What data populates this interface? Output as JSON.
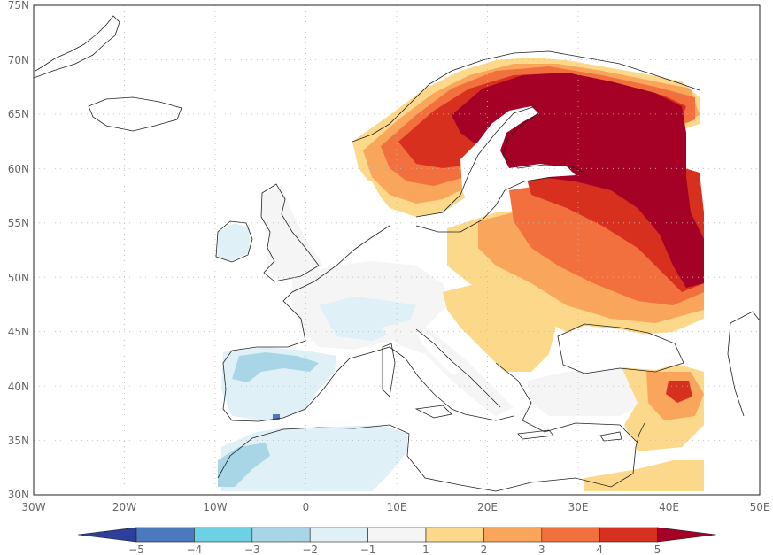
{
  "map": {
    "lat_labels": [
      "75N",
      "70N",
      "65N",
      "60N",
      "55N",
      "50N",
      "45N",
      "40N",
      "35N",
      "30N"
    ],
    "lon_labels": [
      "30W",
      "20W",
      "10W",
      "0",
      "10E",
      "20E",
      "30E",
      "40E",
      "50E"
    ],
    "extent": {
      "lon_min": -30,
      "lon_max": 50,
      "lat_min": 30,
      "lat_max": 75
    },
    "gridlines": true,
    "colors": {
      "land_outline": "#222222",
      "background": "#ffffff",
      "grid": "#bbbbbb"
    }
  },
  "colorbar": {
    "tick_labels": [
      "−5",
      "−4",
      "−3",
      "−2",
      "−1",
      "1",
      "2",
      "3",
      "4",
      "5"
    ],
    "colors": [
      "#2c3f9a",
      "#4a79be",
      "#6ed0e3",
      "#a9d6e6",
      "#dff0f6",
      "#f5f5f5",
      "#fcd98a",
      "#f9a55c",
      "#f2703e",
      "#d7301f",
      "#a50026"
    ],
    "extend": "both"
  }
}
